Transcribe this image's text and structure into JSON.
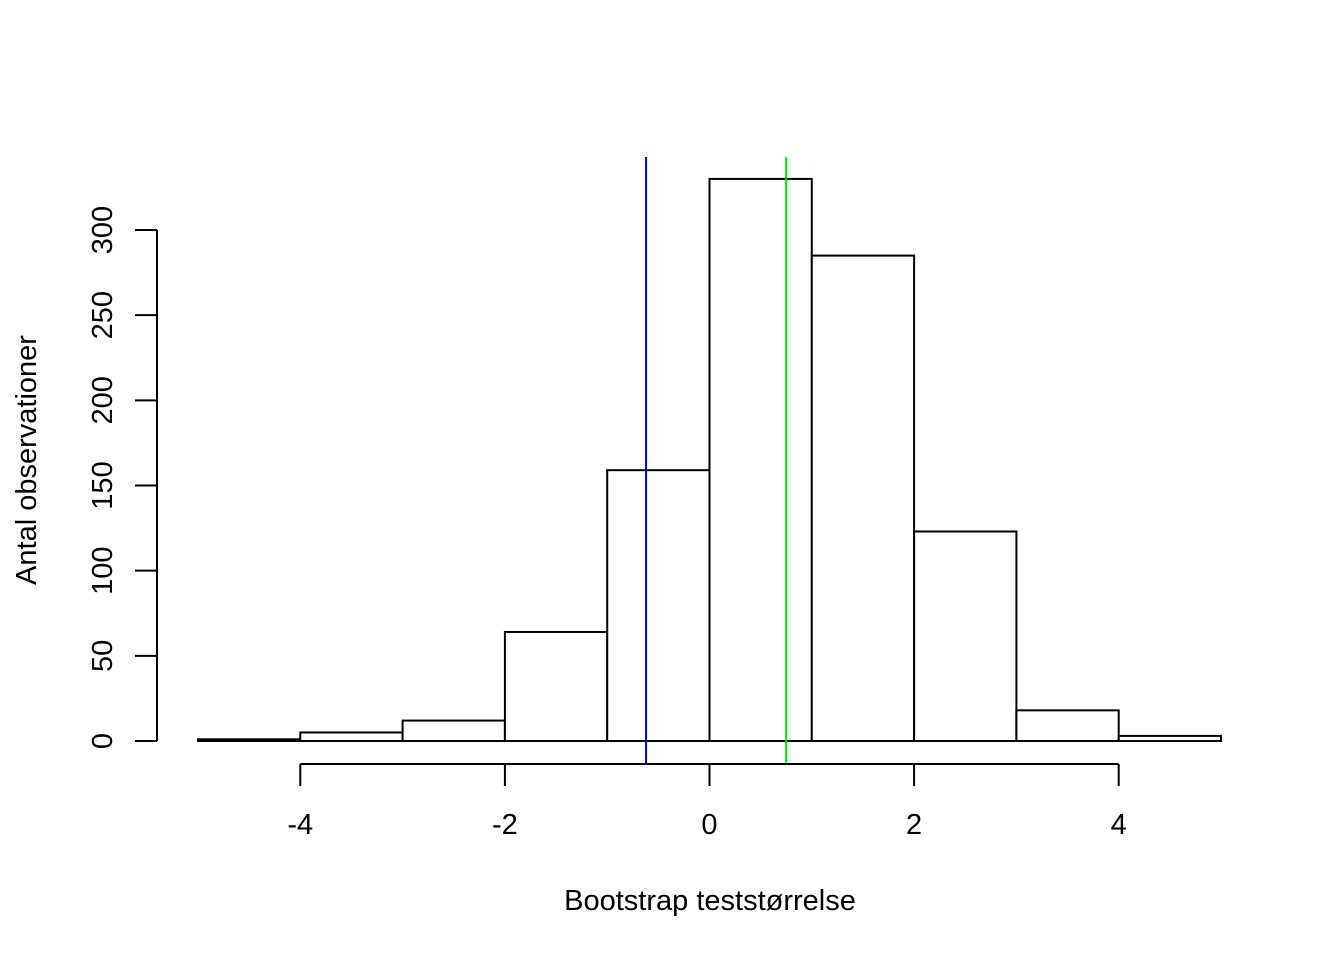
{
  "chart_data": {
    "type": "bar",
    "title": "",
    "xlabel": "Bootstrap teststørrelse",
    "ylabel": "Antal observationer",
    "bins": [
      {
        "x0": -5,
        "x1": -4,
        "count": 1
      },
      {
        "x0": -4,
        "x1": -3,
        "count": 5
      },
      {
        "x0": -3,
        "x1": -2,
        "count": 12
      },
      {
        "x0": -2,
        "x1": -1,
        "count": 64
      },
      {
        "x0": -1,
        "x1": 0,
        "count": 159
      },
      {
        "x0": 0,
        "x1": 1,
        "count": 330
      },
      {
        "x0": 1,
        "x1": 2,
        "count": 285
      },
      {
        "x0": 2,
        "x1": 3,
        "count": 123
      },
      {
        "x0": 3,
        "x1": 4,
        "count": 18
      },
      {
        "x0": 4,
        "x1": 5,
        "count": 3
      }
    ],
    "xlim": [
      -5,
      5
    ],
    "ylim": [
      0,
      330
    ],
    "x_ticks": [
      -4,
      -2,
      0,
      2,
      4
    ],
    "x_tick_labels": [
      "-4",
      "-2",
      "0",
      "2",
      "4"
    ],
    "y_ticks": [
      0,
      50,
      100,
      150,
      200,
      250,
      300
    ],
    "y_tick_labels": [
      "0",
      "50",
      "100",
      "150",
      "200",
      "250",
      "300"
    ],
    "vlines": [
      {
        "x": -0.62,
        "color": "#0000cd"
      },
      {
        "x": 0.75,
        "color": "#00e000"
      }
    ],
    "grid": false,
    "bar_fill": "#ffffff",
    "bar_stroke": "#000000"
  }
}
